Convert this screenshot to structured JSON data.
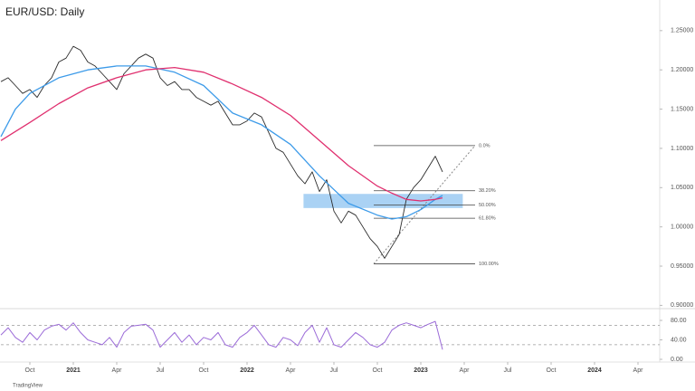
{
  "chart_data": [
    {
      "type": "line",
      "title": "EUR/USD: Daily",
      "xlim": [
        0,
        45.5
      ],
      "ylim": [
        0.897,
        1.289
      ],
      "yticks": [
        {
          "value": 0.9,
          "label": "0.90000"
        },
        {
          "value": 0.95,
          "label": "0.95000"
        },
        {
          "value": 1.0,
          "label": "1.00000"
        },
        {
          "value": 1.05,
          "label": "1.05000"
        },
        {
          "value": 1.1,
          "label": "1.10000"
        },
        {
          "value": 1.15,
          "label": "1.15000"
        },
        {
          "value": 1.2,
          "label": "1.20000"
        },
        {
          "value": 1.25,
          "label": "1.25000"
        }
      ],
      "series": [
        {
          "color": "#2b2b2b",
          "x": [
            0,
            0.5,
            1,
            1.5,
            2,
            2.5,
            3,
            3.5,
            4,
            4.5,
            5,
            5.5,
            6,
            6.5,
            7,
            7.5,
            8,
            8.5,
            9,
            9.5,
            10,
            10.5,
            11,
            11.5,
            12,
            12.5,
            13,
            13.5,
            14,
            14.5,
            15,
            15.5,
            16,
            16.5,
            17,
            17.5,
            18,
            18.5,
            19,
            19.5,
            20,
            20.5,
            21,
            21.5,
            22,
            22.5,
            23,
            23.5,
            24,
            24.5,
            25,
            25.5,
            26,
            26.5,
            27,
            27.5,
            28,
            28.5,
            29,
            29.5,
            30,
            30.5
          ],
          "values": [
            1.185,
            1.19,
            1.18,
            1.17,
            1.175,
            1.165,
            1.18,
            1.19,
            1.21,
            1.215,
            1.23,
            1.225,
            1.21,
            1.205,
            1.195,
            1.185,
            1.175,
            1.195,
            1.205,
            1.215,
            1.22,
            1.215,
            1.19,
            1.18,
            1.185,
            1.175,
            1.175,
            1.165,
            1.16,
            1.155,
            1.16,
            1.145,
            1.13,
            1.13,
            1.135,
            1.145,
            1.14,
            1.12,
            1.1,
            1.095,
            1.08,
            1.065,
            1.055,
            1.07,
            1.045,
            1.06,
            1.02,
            1.005,
            1.02,
            1.015,
            1.0,
            0.985,
            0.975,
            0.96,
            0.975,
            0.99,
            1.035,
            1.05,
            1.06,
            1.075,
            1.09,
            1.07
          ]
        },
        {
          "color": "#3d9be9",
          "x": [
            0,
            1,
            2,
            4,
            6,
            8,
            10,
            12,
            14,
            16,
            18,
            20,
            22,
            24,
            26,
            27,
            28,
            29,
            30,
            30.5
          ],
          "values": [
            1.115,
            1.15,
            1.17,
            1.19,
            1.2,
            1.205,
            1.205,
            1.197,
            1.18,
            1.145,
            1.13,
            1.105,
            1.065,
            1.03,
            1.015,
            1.01,
            1.013,
            1.022,
            1.035,
            1.04
          ]
        },
        {
          "color": "#e0306f",
          "x": [
            0,
            2,
            4,
            6,
            8,
            10,
            12,
            14,
            16,
            18,
            20,
            22,
            24,
            26,
            27,
            28,
            29,
            30,
            30.5
          ],
          "values": [
            1.11,
            1.133,
            1.157,
            1.177,
            1.19,
            1.2,
            1.203,
            1.197,
            1.182,
            1.165,
            1.142,
            1.11,
            1.078,
            1.052,
            1.043,
            1.035,
            1.033,
            1.035,
            1.037
          ]
        }
      ],
      "fib_x": [
        25.75,
        32.75
      ],
      "fib_levels": [
        {
          "value": 1.1035,
          "label": "0.0%"
        },
        {
          "value": 1.046,
          "label": "38.20%"
        },
        {
          "value": 1.028,
          "label": "50.00%"
        },
        {
          "value": 1.011,
          "label": "61.80%"
        },
        {
          "value": 0.953,
          "label": "100.00%"
        }
      ],
      "zone": {
        "x": [
          20.9,
          31.9
        ],
        "y": [
          1.024,
          1.042
        ],
        "color": "#8ec3f0"
      }
    },
    {
      "type": "rsi",
      "color": "#9b6bd8",
      "xlim": [
        0,
        45.5
      ],
      "ylim": [
        -5.6,
        102.3
      ],
      "yticks": [
        {
          "value": 0,
          "label": "0.00"
        },
        {
          "value": 40,
          "label": "40.00"
        },
        {
          "value": 80,
          "label": "80.00"
        }
      ],
      "bands": [
        30,
        70
      ],
      "xticks": [
        {
          "value": 2,
          "label": "Oct"
        },
        {
          "value": 5,
          "label": "2021"
        },
        {
          "value": 8,
          "label": "Apr"
        },
        {
          "value": 11,
          "label": "Jul"
        },
        {
          "value": 14,
          "label": "Oct"
        },
        {
          "value": 17,
          "label": "2022"
        },
        {
          "value": 20,
          "label": "Apr"
        },
        {
          "value": 23,
          "label": "Jul"
        },
        {
          "value": 26,
          "label": "Oct"
        },
        {
          "value": 29,
          "label": "2023"
        },
        {
          "value": 32,
          "label": "Apr"
        },
        {
          "value": 35,
          "label": "Jul"
        },
        {
          "value": 38,
          "label": "Oct"
        },
        {
          "value": 41,
          "label": "2024"
        },
        {
          "value": 44,
          "label": "Apr"
        }
      ],
      "x": [
        0,
        0.5,
        1,
        1.5,
        2,
        2.5,
        3,
        3.5,
        4,
        4.5,
        5,
        5.5,
        6,
        6.5,
        7,
        7.5,
        8,
        8.5,
        9,
        9.5,
        10,
        10.5,
        11,
        11.5,
        12,
        12.5,
        13,
        13.5,
        14,
        14.5,
        15,
        15.5,
        16,
        16.5,
        17,
        17.5,
        18,
        18.5,
        19,
        19.5,
        20,
        20.5,
        21,
        21.5,
        22,
        22.5,
        23,
        23.5,
        24,
        24.5,
        25,
        25.5,
        26,
        26.5,
        27,
        27.5,
        28,
        28.5,
        29,
        29.5,
        30,
        30.5
      ],
      "values": [
        50,
        65,
        45,
        35,
        55,
        40,
        60,
        68,
        72,
        60,
        75,
        55,
        40,
        35,
        30,
        45,
        25,
        55,
        68,
        70,
        72,
        60,
        25,
        40,
        55,
        35,
        50,
        30,
        45,
        40,
        55,
        30,
        25,
        45,
        55,
        70,
        50,
        30,
        25,
        45,
        40,
        28,
        55,
        70,
        35,
        65,
        30,
        25,
        40,
        55,
        45,
        30,
        25,
        35,
        60,
        70,
        75,
        70,
        65,
        72,
        78,
        20
      ]
    }
  ],
  "watermark": "TradingView"
}
